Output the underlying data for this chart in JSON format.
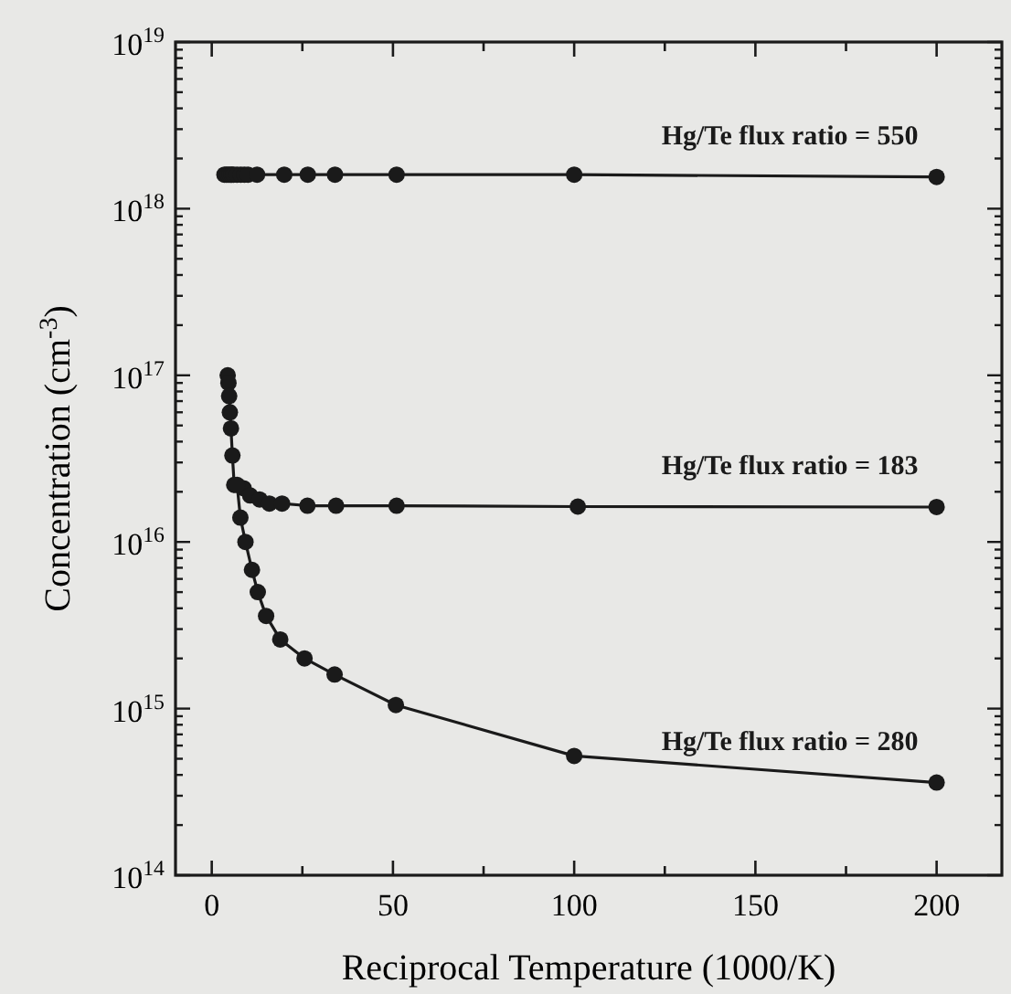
{
  "chart_data": {
    "type": "line",
    "xlabel": "Reciprocal Temperature (1000/K)",
    "ylabel": "Concentration (cm$^{-3}$)",
    "log": true,
    "grid": false,
    "marker": "circle",
    "line_style": "solid",
    "xlim": [
      -10,
      218
    ],
    "xticks": [
      0,
      {
        "value": 25,
        "label": null
      },
      50,
      {
        "value": 75,
        "label": null
      },
      100,
      {
        "value": 125,
        "label": null
      },
      150,
      {
        "value": 175,
        "label": null
      },
      200
    ],
    "ylim": [
      100000000000000.0,
      1e+19
    ],
    "yticks": [
      {
        "value": 100000000000000.0,
        "label": "10$^{14}$"
      },
      {
        "value": 200000000000000.0,
        "label": null
      },
      {
        "value": 300000000000000.0,
        "label": null
      },
      {
        "value": 400000000000000.0,
        "label": null
      },
      {
        "value": 500000000000000.0,
        "label": null
      },
      {
        "value": 600000000000000.0,
        "label": null
      },
      {
        "value": 700000000000000.0,
        "label": null
      },
      {
        "value": 800000000000000.0,
        "label": null
      },
      {
        "value": 900000000000000.0,
        "label": null
      },
      {
        "value": 1000000000000000.0,
        "label": "10$^{15}$"
      },
      {
        "value": 2000000000000000.0,
        "label": null
      },
      {
        "value": 3000000000000000.0,
        "label": null
      },
      {
        "value": 4000000000000000.0,
        "label": null
      },
      {
        "value": 5000000000000000.0,
        "label": null
      },
      {
        "value": 6000000000000000.0,
        "label": null
      },
      {
        "value": 7000000000000000.0,
        "label": null
      },
      {
        "value": 8000000000000000.0,
        "label": null
      },
      {
        "value": 9000000000000000.0,
        "label": null
      },
      {
        "value": 1e+16,
        "label": "10$^{16}$"
      },
      {
        "value": 2e+16,
        "label": null
      },
      {
        "value": 3e+16,
        "label": null
      },
      {
        "value": 4e+16,
        "label": null
      },
      {
        "value": 5e+16,
        "label": null
      },
      {
        "value": 6e+16,
        "label": null
      },
      {
        "value": 7e+16,
        "label": null
      },
      {
        "value": 8e+16,
        "label": null
      },
      {
        "value": 9e+16,
        "label": null
      },
      {
        "value": 1e+17,
        "label": "10$^{17}$"
      },
      {
        "value": 2e+17,
        "label": null
      },
      {
        "value": 3e+17,
        "label": null
      },
      {
        "value": 4e+17,
        "label": null
      },
      {
        "value": 5e+17,
        "label": null
      },
      {
        "value": 6e+17,
        "label": null
      },
      {
        "value": 7e+17,
        "label": null
      },
      {
        "value": 8e+17,
        "label": null
      },
      {
        "value": 9e+17,
        "label": null
      },
      {
        "value": 1e+18,
        "label": "10$^{18}$"
      },
      {
        "value": 2e+18,
        "label": null
      },
      {
        "value": 3e+18,
        "label": null
      },
      {
        "value": 4e+18,
        "label": null
      },
      {
        "value": 5e+18,
        "label": null
      },
      {
        "value": 6e+18,
        "label": null
      },
      {
        "value": 7e+18,
        "label": null
      },
      {
        "value": 8e+18,
        "label": null
      },
      {
        "value": 9e+18,
        "label": null
      },
      {
        "value": 1e+19,
        "label": "10$^{19}$"
      }
    ],
    "series": [
      {
        "name": "Hg/Te flux ratio = 550",
        "color": "#1a1a1a",
        "x": [
          3.5,
          4,
          4.5,
          5,
          5.5,
          6,
          7,
          8,
          9,
          10,
          12.5,
          20,
          26.5,
          34,
          51,
          100,
          200
        ],
        "values": [
          1.6e+18,
          1.6e+18,
          1.6e+18,
          1.6e+18,
          1.6e+18,
          1.6e+18,
          1.6e+18,
          1.6e+18,
          1.6e+18,
          1.6e+18,
          1.6e+18,
          1.6e+18,
          1.6e+18,
          1.6e+18,
          1.6e+18,
          1.6e+18,
          1.55e+18
        ]
      },
      {
        "name": "Hg/Te flux ratio = 183",
        "color": "#1a1a1a",
        "x": [
          4.4,
          4.6,
          4.8,
          5,
          5.3,
          5.7,
          6.2,
          8.8,
          10.6,
          13.2,
          15.9,
          19.4,
          26.4,
          34.3,
          51,
          101,
          200
        ],
        "values": [
          1e+17,
          9e+16,
          7.5e+16,
          6e+16,
          4.8e+16,
          3.3e+16,
          2.2e+16,
          2.1e+16,
          1.9e+16,
          1.8e+16,
          1.7e+16,
          1.7e+16,
          1.65e+16,
          1.65e+16,
          1.65e+16,
          1.63e+16,
          1.62e+16
        ]
      },
      {
        "name": "Hg/Te flux ratio = 280",
        "color": "#1a1a1a",
        "x": [
          7,
          7.9,
          9.3,
          11.1,
          12.7,
          15,
          18.9,
          25.6,
          33.9,
          50.8,
          100,
          200
        ],
        "values": [
          2.2e+16,
          1.4e+16,
          1e+16,
          6800000000000000.0,
          5000000000000000.0,
          3600000000000000.0,
          2600000000000000.0,
          2000000000000000.0,
          1600000000000000.0,
          1050000000000000.0,
          520000000000000.0,
          360000000000000.0
        ]
      }
    ]
  }
}
